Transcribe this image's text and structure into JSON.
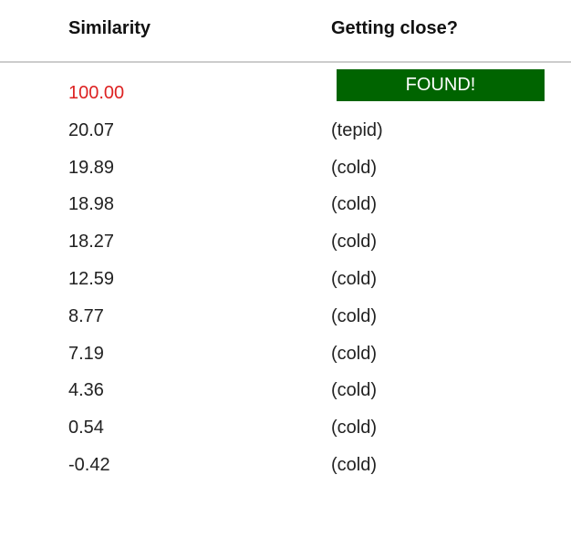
{
  "headers": {
    "similarity": "Similarity",
    "getting_close": "Getting close?"
  },
  "colors": {
    "found_bg": "#006400",
    "found_similarity": "#dd2222"
  },
  "rows": [
    {
      "similarity": "100.00",
      "closeness": "FOUND!",
      "found": true
    },
    {
      "similarity": "20.07",
      "closeness": "(tepid)"
    },
    {
      "similarity": "19.89",
      "closeness": "(cold)"
    },
    {
      "similarity": "18.98",
      "closeness": "(cold)"
    },
    {
      "similarity": "18.27",
      "closeness": "(cold)"
    },
    {
      "similarity": "12.59",
      "closeness": "(cold)"
    },
    {
      "similarity": "8.77",
      "closeness": "(cold)"
    },
    {
      "similarity": "7.19",
      "closeness": "(cold)"
    },
    {
      "similarity": "4.36",
      "closeness": "(cold)"
    },
    {
      "similarity": "0.54",
      "closeness": "(cold)"
    },
    {
      "similarity": "-0.42",
      "closeness": "(cold)"
    }
  ]
}
